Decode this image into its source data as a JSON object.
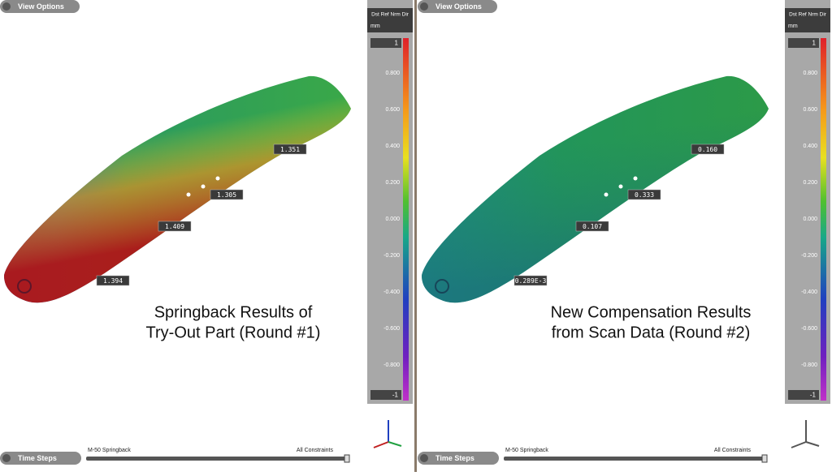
{
  "panels": [
    {
      "view_options": "View Options",
      "legend": {
        "header": "Dst Ref Nrm Dir",
        "unit": "mm",
        "max": "1",
        "ticks": [
          "0.800",
          "0.600",
          "0.400",
          "0.200",
          "0.000",
          "-0.200",
          "-0.400",
          "-0.600",
          "-0.800"
        ],
        "min": "-1"
      },
      "callouts": [
        "1.351",
        "1.305",
        "1.409",
        "1.394"
      ],
      "caption": [
        "Springback Results of",
        "Try-Out Part (Round #1)"
      ],
      "time_steps": "Time Steps",
      "step_name": "M-50 Springback",
      "constraints": "All Constraints"
    },
    {
      "view_options": "View Options",
      "legend": {
        "header": "Dst Ref Nrm Dir",
        "unit": "mm",
        "max": "1",
        "ticks": [
          "0.800",
          "0.600",
          "0.400",
          "0.200",
          "0.000",
          "-0.200",
          "-0.400",
          "-0.600",
          "-0.800"
        ],
        "min": "-1"
      },
      "callouts": [
        "0.160",
        "0.333",
        "0.107",
        "0.289E-3"
      ],
      "caption": [
        "New Compensation Results",
        "from Scan Data (Round #2)"
      ],
      "time_steps": "Time Steps",
      "step_name": "M-50 Springback",
      "constraints": "All Constraints"
    }
  ]
}
